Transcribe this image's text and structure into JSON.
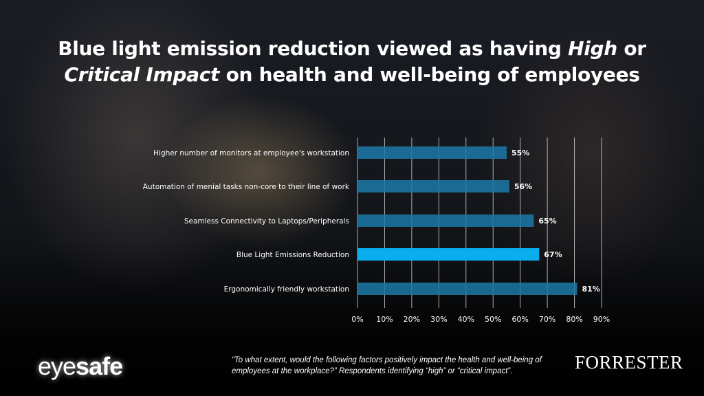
{
  "title": {
    "part1": "Blue light emission reduction viewed as having ",
    "italic1": "High",
    "part2": " or",
    "italic2": "Critical Impact",
    "part3": " on health and well-being of employees"
  },
  "chart_data": {
    "type": "bar",
    "orientation": "horizontal",
    "categories": [
      "Higher number of monitors at employee's workstation",
      "Automation of menial tasks non-core to their line of work",
      "Seamless Connectivity to Laptops/Peripherals",
      "Blue Light Emissions Reduction",
      "Ergonomically friendly workstation"
    ],
    "values": [
      55,
      56,
      65,
      67,
      81
    ],
    "data_labels": [
      "55%",
      "56%",
      "65%",
      "67%",
      "81%"
    ],
    "highlighted_category": "Blue Light Emissions Reduction",
    "xlim": [
      0,
      90
    ],
    "x_ticks": [
      0,
      10,
      20,
      30,
      40,
      50,
      60,
      70,
      80,
      90
    ],
    "x_tick_labels": [
      "0%",
      "10%",
      "20%",
      "30%",
      "40%",
      "50%",
      "60%",
      "70%",
      "80%",
      "90%"
    ],
    "grid": "vertical",
    "colors": {
      "bar": "#1b79a8",
      "highlight": "#0aaeef",
      "grid": "#d8d8d8"
    }
  },
  "footer": {
    "logo_left": {
      "light": "eye",
      "bold": "safe"
    },
    "note_line1": "“To what extent, would the following factors positively impact the health and well-being of",
    "note_line2": "employees at the workplace?”  Respondents identifying “high” or “critical impact”.",
    "logo_right": "FORRESTER"
  }
}
